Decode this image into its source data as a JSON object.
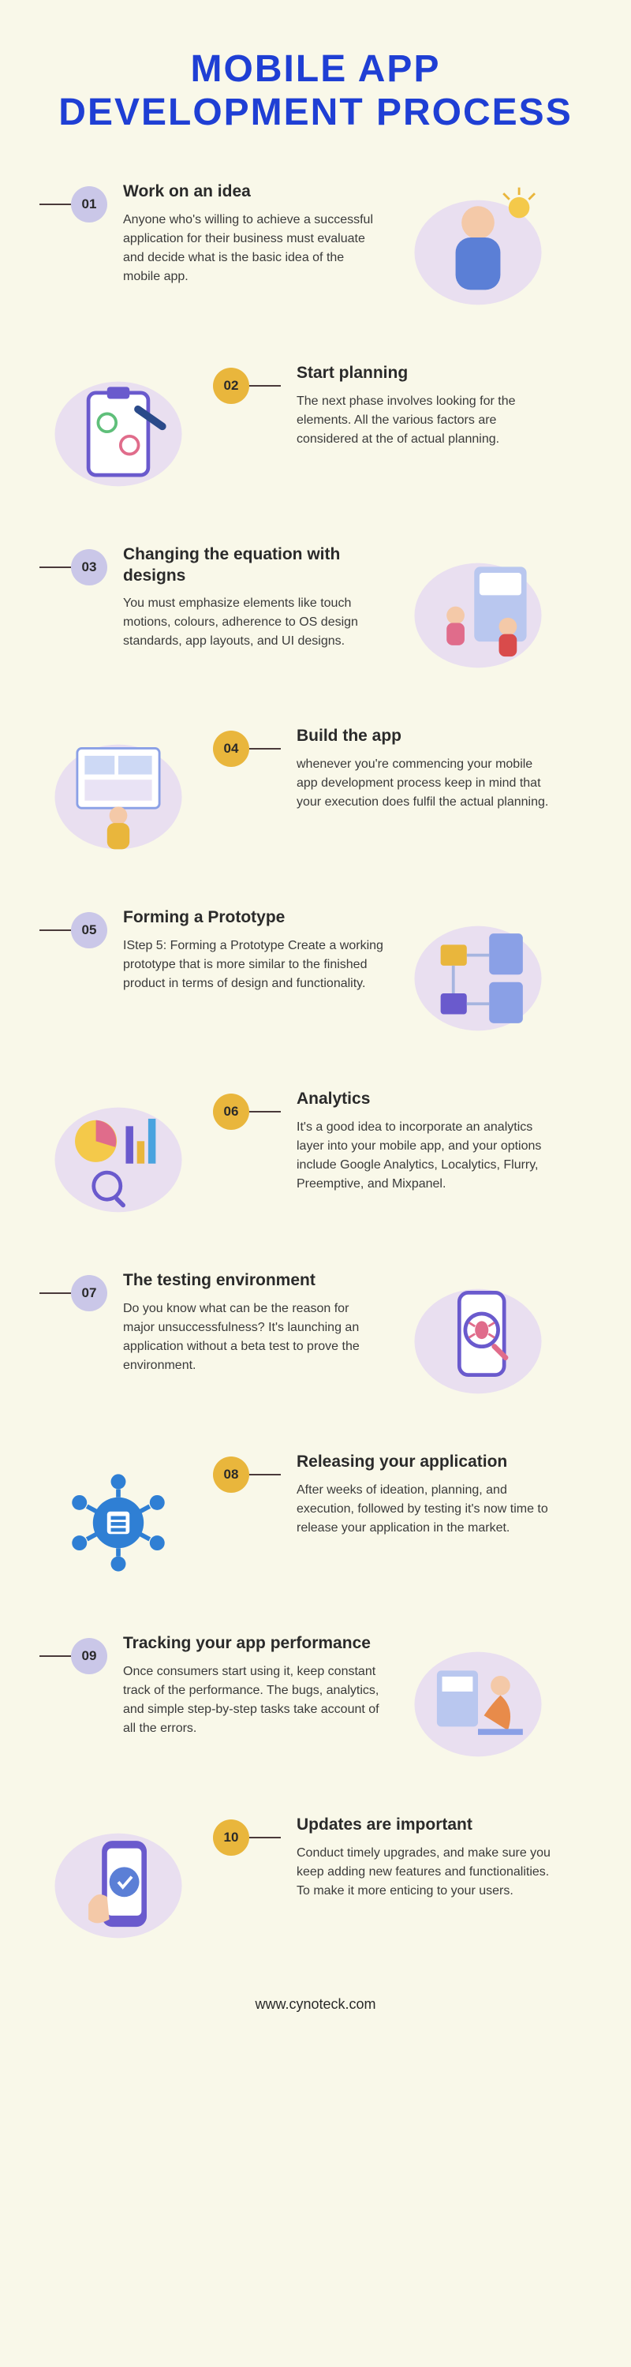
{
  "title": "MOBILE APP DEVELOPMENT PROCESS",
  "title_color": "#1f3fd4",
  "background_color": "#f9f8e9",
  "badge_palette": {
    "purple": "#cac7e8",
    "yellow": "#e9b63c"
  },
  "footer": "www.cynoteck.com",
  "steps": [
    {
      "num": "01",
      "side": "left",
      "badge_color": "#cac7e8",
      "title": "Work on an idea",
      "body": "Anyone who's willing to achieve a successful application for their business must evaluate and decide what is the basic idea of the mobile app.",
      "illus": "person-idea"
    },
    {
      "num": "02",
      "side": "right",
      "badge_color": "#e9b63c",
      "title": "Start planning",
      "body": "The next phase involves looking for the elements. All the various factors are considered at the of actual planning.",
      "illus": "clipboard-pen"
    },
    {
      "num": "03",
      "side": "left",
      "badge_color": "#cac7e8",
      "title": "Changing the equation with designs",
      "body": "You must emphasize elements like touch motions, colours, adherence to OS design standards, app layouts, and UI designs.",
      "illus": "team-devices"
    },
    {
      "num": "04",
      "side": "right",
      "badge_color": "#e9b63c",
      "title": "Build the app",
      "body": "whenever you're commencing your mobile app development process keep in mind that your execution does fulfil the actual planning.",
      "illus": "person-board"
    },
    {
      "num": "05",
      "side": "left",
      "badge_color": "#cac7e8",
      "title": "Forming a Prototype",
      "body": "IStep 5: Forming a Prototype Create a working prototype that is more similar to the finished product in terms of design and functionality.",
      "illus": "prototype-flow"
    },
    {
      "num": "06",
      "side": "right",
      "badge_color": "#e9b63c",
      "title": "Analytics",
      "body": "It's a good idea to incorporate an analytics layer into your mobile app, and your options include Google Analytics, Localytics, Flurry, Preemptive, and Mixpanel.",
      "illus": "analytics-charts"
    },
    {
      "num": "07",
      "side": "left",
      "badge_color": "#cac7e8",
      "title": "The testing environment",
      "body": "Do you know what can be the reason for major unsuccessfulness? It's launching an application without a beta test to prove the environment.",
      "illus": "bug-phone"
    },
    {
      "num": "08",
      "side": "right",
      "badge_color": "#e9b63c",
      "title": "Releasing your application",
      "body": "After weeks of ideation, planning, and execution, followed by testing it's now time to release your application in the market.",
      "illus": "release-network"
    },
    {
      "num": "09",
      "side": "left",
      "badge_color": "#cac7e8",
      "title": "Tracking your app performance",
      "body": "Once consumers start using it, keep constant track of the performance. The bugs, analytics, and simple step-by-step tasks take account of all the errors.",
      "illus": "person-desk"
    },
    {
      "num": "10",
      "side": "right",
      "badge_color": "#e9b63c",
      "title": "Updates are important",
      "body": "Conduct timely upgrades, and make sure you keep adding new features and functionalities. To make it more enticing to your users.",
      "illus": "phone-check"
    }
  ]
}
